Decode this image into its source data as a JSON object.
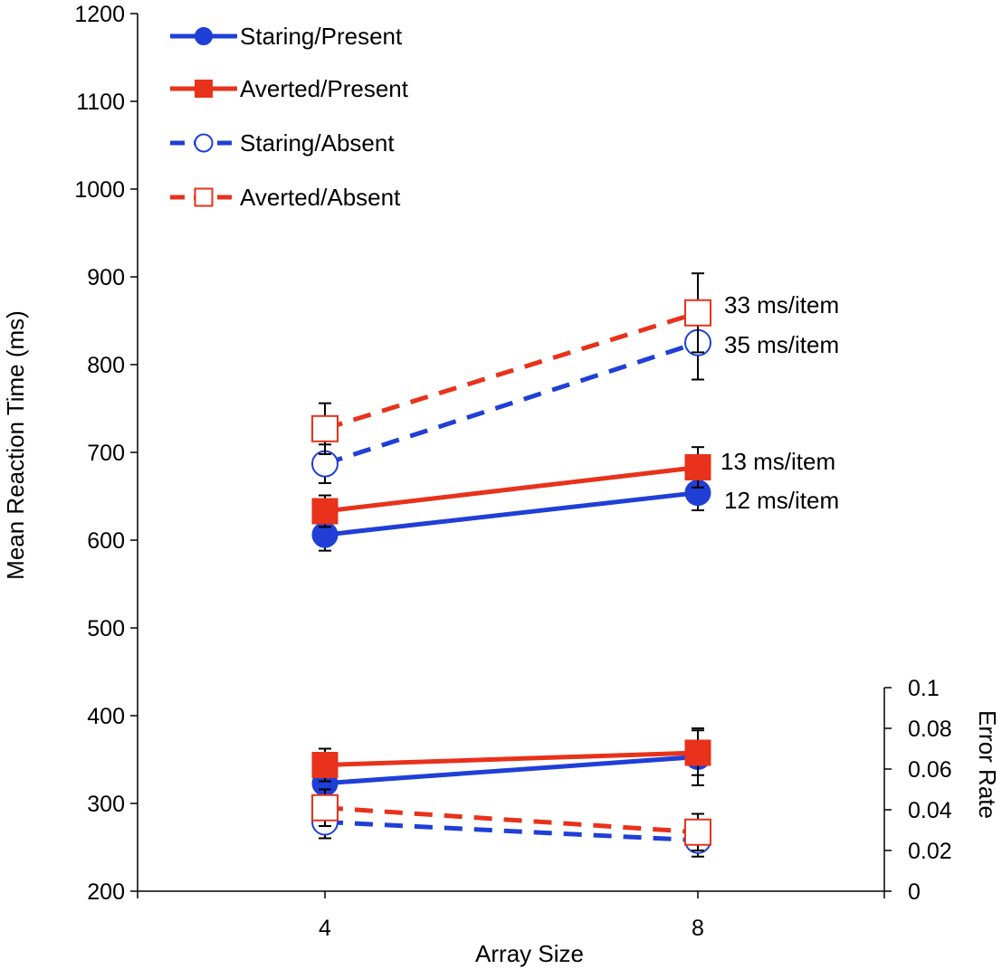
{
  "chart_data": [
    {
      "type": "line",
      "title": "",
      "xlabel": "Array Size",
      "ylabel": "Mean Reaction Time  (ms)",
      "x": [
        4,
        8
      ],
      "x_tick_labels": [
        "4",
        "8"
      ],
      "ylim": [
        200,
        1200
      ],
      "y_ticks": [
        200,
        300,
        400,
        500,
        600,
        700,
        800,
        900,
        1000,
        1100,
        1200
      ],
      "y_tick_labels": [
        "200",
        "300",
        "400",
        "500",
        "600",
        "700",
        "800",
        "900",
        "1000",
        "1100",
        "1200"
      ],
      "series": [
        {
          "name": "Staring/Present",
          "values": [
            606,
            654
          ],
          "err": [
            18,
            20
          ],
          "color": "#1f3fd6",
          "dash": "solid",
          "marker": "circle-filled",
          "slope_label": "12 ms/item"
        },
        {
          "name": "Averted/Present",
          "values": [
            633,
            683
          ],
          "err": [
            18,
            23
          ],
          "color": "#e8321b",
          "dash": "solid",
          "marker": "square-filled",
          "slope_label": "13 ms/item"
        },
        {
          "name": "Staring/Absent",
          "values": [
            687,
            825
          ],
          "err": [
            22,
            42
          ],
          "color": "#1f3fd6",
          "dash": "dashed",
          "marker": "circle-open",
          "slope_label": "35 ms/item"
        },
        {
          "name": "Averted/Absent",
          "values": [
            727,
            859
          ],
          "err": [
            29,
            45
          ],
          "color": "#e8321b",
          "dash": "dashed",
          "marker": "square-open",
          "slope_label": "33 ms/item"
        }
      ],
      "legend_position": "top-left",
      "grid": false
    },
    {
      "type": "line",
      "ylabel": "Error Rate",
      "x": [
        4,
        8
      ],
      "ylim": [
        0,
        0.1
      ],
      "y_ticks": [
        0,
        0.02,
        0.04,
        0.06,
        0.08,
        0.1
      ],
      "y_tick_labels": [
        "0",
        "0.02",
        "0.04",
        "0.06",
        "0.08",
        "0.1"
      ],
      "series": [
        {
          "name": "Staring/Present",
          "values": [
            0.053,
            0.066
          ],
          "err": [
            0.01,
            0.014
          ],
          "color": "#1f3fd6",
          "dash": "solid",
          "marker": "circle-filled"
        },
        {
          "name": "Averted/Present",
          "values": [
            0.062,
            0.068
          ],
          "err": [
            0.008,
            0.011
          ],
          "color": "#e8321b",
          "dash": "solid",
          "marker": "square-filled"
        },
        {
          "name": "Staring/Absent",
          "values": [
            0.034,
            0.025
          ],
          "err": [
            0.008,
            0.008
          ],
          "color": "#1f3fd6",
          "dash": "dashed",
          "marker": "circle-open"
        },
        {
          "name": "Averted/Absent",
          "values": [
            0.041,
            0.029
          ],
          "err": [
            0.009,
            0.009
          ],
          "color": "#e8321b",
          "dash": "dashed",
          "marker": "square-open"
        }
      ]
    }
  ]
}
